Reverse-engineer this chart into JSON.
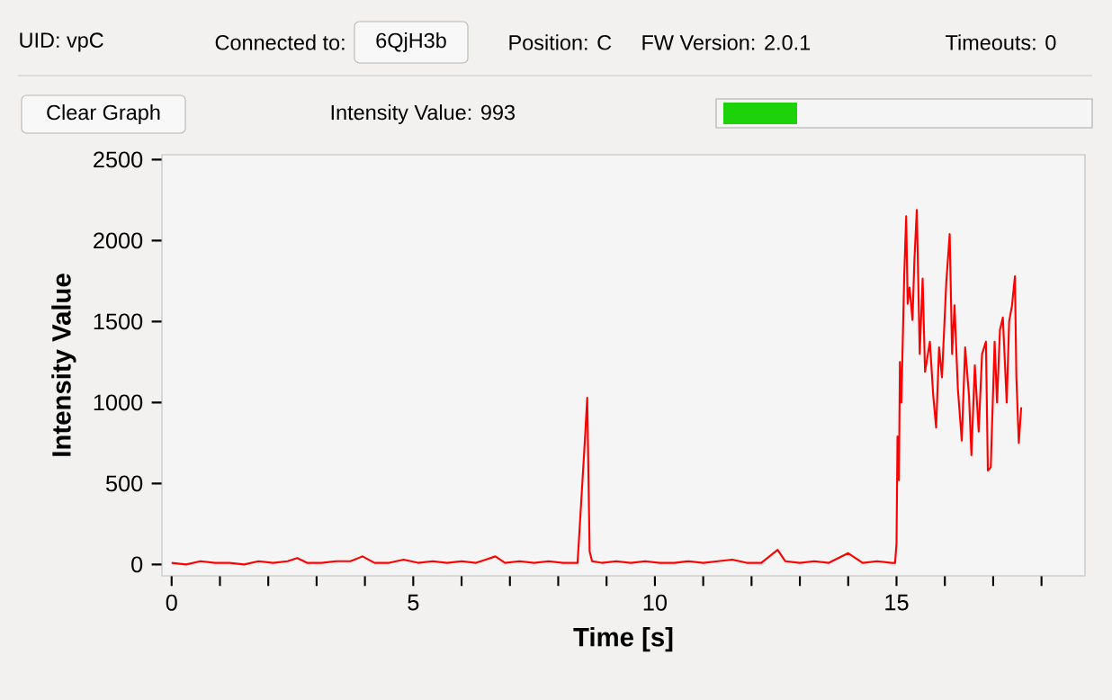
{
  "chart_data": {
    "type": "line",
    "xlabel": "Time [s]",
    "ylabel": "Intensity Value",
    "annotations": [
      "UID:  vpC",
      "Connected to:",
      "6QjH3b",
      "Position:  C",
      "FW Version:  2.0.1",
      "Timeouts:  0",
      "Clear Graph",
      "Intensity Value: 993"
    ],
    "xlim": [
      -0.2,
      18.9
    ],
    "ylim": [
      -70,
      2530
    ],
    "xticks": [
      0,
      {
        "value": 1,
        "label": null
      },
      {
        "value": 2,
        "label": null
      },
      {
        "value": 3,
        "label": null
      },
      {
        "value": 4,
        "label": null
      },
      5,
      {
        "value": 6,
        "label": null
      },
      {
        "value": 7,
        "label": null
      },
      {
        "value": 8,
        "label": null
      },
      {
        "value": 9,
        "label": null
      },
      10,
      {
        "value": 11,
        "label": null
      },
      {
        "value": 12,
        "label": null
      },
      {
        "value": 13,
        "label": null
      },
      {
        "value": 14,
        "label": null
      },
      15,
      {
        "value": 16,
        "label": null
      },
      {
        "value": 17,
        "label": null
      },
      {
        "value": 18,
        "label": null
      }
    ],
    "yticks": [
      0,
      500,
      1000,
      1500,
      2000,
      2500
    ],
    "marker": "none",
    "line_style": "solid",
    "grid": false,
    "series": [
      {
        "color": "#ff0000",
        "x": [
          0.0,
          0.3,
          0.6,
          0.9,
          1.2,
          1.5,
          1.8,
          2.1,
          2.4,
          2.6,
          2.8,
          3.1,
          3.4,
          3.7,
          3.95,
          4.2,
          4.5,
          4.8,
          5.1,
          5.4,
          5.7,
          6.0,
          6.3,
          6.5,
          6.7,
          6.9,
          7.2,
          7.5,
          7.8,
          8.1,
          8.4,
          8.55,
          8.6,
          8.65,
          8.7,
          8.9,
          9.2,
          9.5,
          9.8,
          10.1,
          10.4,
          10.7,
          11.0,
          11.3,
          11.6,
          11.9,
          12.2,
          12.54,
          12.7,
          13.0,
          13.3,
          13.6,
          14.0,
          14.3,
          14.6,
          14.9,
          14.97,
          15.0,
          15.02,
          15.05,
          15.07,
          15.1,
          15.16,
          15.2,
          15.23,
          15.27,
          15.33,
          15.37,
          15.42,
          15.48,
          15.54,
          15.59,
          15.69,
          15.76,
          15.82,
          15.88,
          15.94,
          16.03,
          16.1,
          16.15,
          16.2,
          16.27,
          16.35,
          16.42,
          16.5,
          16.55,
          16.62,
          16.7,
          16.77,
          16.85,
          16.89,
          16.95,
          17.03,
          17.08,
          17.14,
          17.2,
          17.28,
          17.33,
          17.39,
          17.45,
          17.48,
          17.53,
          17.58
        ],
        "values": [
          10,
          0,
          20,
          10,
          10,
          0,
          20,
          10,
          20,
          40,
          10,
          10,
          20,
          20,
          50,
          10,
          10,
          30,
          10,
          20,
          10,
          20,
          10,
          30,
          50,
          10,
          20,
          10,
          20,
          10,
          10,
          760,
          1030,
          80,
          20,
          10,
          20,
          10,
          20,
          10,
          10,
          20,
          10,
          20,
          30,
          10,
          10,
          90,
          20,
          10,
          20,
          10,
          70,
          10,
          20,
          10,
          10,
          130,
          790,
          520,
          1250,
          1000,
          1790,
          2150,
          1610,
          1710,
          1510,
          1880,
          2190,
          1300,
          1765,
          1190,
          1375,
          1040,
          845,
          1340,
          1155,
          1745,
          2040,
          1300,
          1600,
          1080,
          765,
          1340,
          1040,
          675,
          1230,
          820,
          1300,
          1375,
          580,
          600,
          1375,
          1000,
          1450,
          1525,
          1000,
          1500,
          1600,
          1780,
          1155,
          750,
          970
        ]
      }
    ]
  }
}
